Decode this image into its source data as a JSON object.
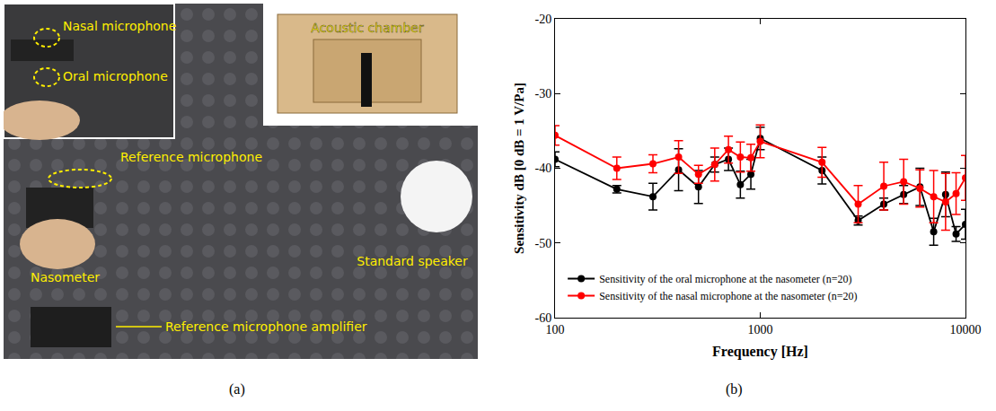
{
  "panel_labels": [
    "(a)",
    "(b)"
  ],
  "photo": {
    "nasal_microphone": "Nasal microphone",
    "oral_microphone": "Oral microphone",
    "acoustic_chamber": "Acoustic chamber",
    "reference_microphone": "Reference microphone",
    "nasometer": "Nasometer",
    "standard_speaker": "Standard speaker",
    "reference_microphone_amplifier": "Reference microphone amplifier"
  },
  "chart_data": {
    "type": "line",
    "x_label": "Frequency [Hz]",
    "y_label": "Sensitivity dB [0 dB = 1 V/Pa]",
    "x": [
      100,
      200,
      300,
      400,
      500,
      600,
      700,
      800,
      900,
      1000,
      2000,
      3000,
      4000,
      5000,
      6000,
      7000,
      8000,
      9000,
      10000
    ],
    "series": [
      {
        "name": "Sensitivity of the oral microphone at the nasometer (n=20)",
        "color": "#000000",
        "marker": "circle",
        "values": [
          -38.8,
          -42.8,
          -43.8,
          -40.2,
          -42.5,
          -39.5,
          -38.8,
          -42.2,
          -40.8,
          -36.0,
          -40.3,
          -47.0,
          -44.8,
          -43.5,
          -42.5,
          -48.5,
          -43.5,
          -48.8,
          -47.5
        ],
        "errors": [
          1.0,
          0.5,
          1.8,
          2.8,
          2.2,
          1.0,
          1.5,
          1.8,
          2.0,
          1.5,
          1.8,
          0.6,
          0.8,
          1.2,
          2.5,
          1.8,
          3.0,
          1.0,
          2.0
        ]
      },
      {
        "name": "Sensitivity of the nasal microphone at the nasometer (n=20)",
        "color": "#ff0000",
        "marker": "circle",
        "values": [
          -35.6,
          -40.0,
          -39.4,
          -38.5,
          -40.8,
          -39.5,
          -37.5,
          -38.5,
          -38.6,
          -36.4,
          -39.2,
          -44.8,
          -42.4,
          -41.8,
          -42.7,
          -43.8,
          -44.5,
          -43.4,
          -41.3
        ],
        "errors": [
          1.3,
          1.5,
          1.2,
          2.2,
          1.2,
          2.2,
          1.8,
          2.0,
          1.8,
          2.2,
          2.0,
          2.5,
          3.2,
          3.0,
          2.5,
          3.5,
          3.8,
          2.8,
          3.0
        ]
      }
    ],
    "log": "x",
    "xlim": [
      100,
      10000
    ],
    "xticks": [
      100,
      1000,
      10000
    ],
    "ylim": [
      -60,
      -20
    ],
    "yticks": [
      -60,
      -50,
      -40,
      -30,
      -20
    ],
    "grid": false,
    "legend": "lower left"
  }
}
